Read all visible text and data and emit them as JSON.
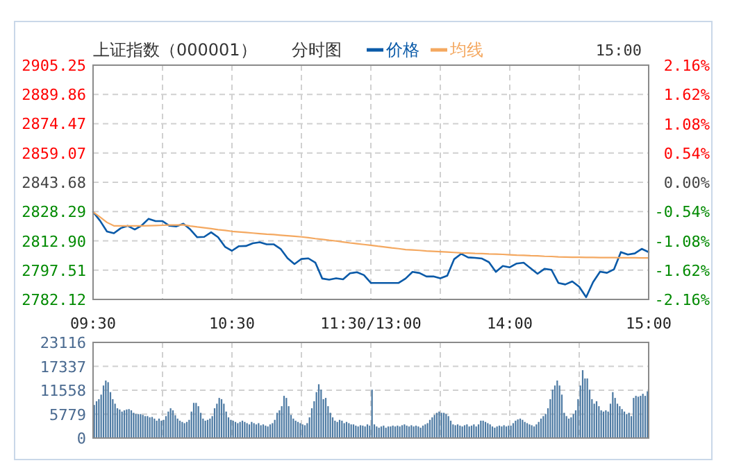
{
  "chart_data": [
    {
      "type": "line",
      "title": "上证指数（000001）",
      "subtitle": "分时图",
      "annotations": [
        "15:00"
      ],
      "legend": "top",
      "grid": true,
      "categories": [
        "09:30",
        null,
        null,
        null,
        null,
        null,
        null,
        null,
        null,
        null,
        null,
        null,
        null,
        null,
        null,
        null,
        null,
        null,
        null,
        null,
        "10:30",
        null,
        null,
        null,
        null,
        null,
        null,
        null,
        null,
        null,
        null,
        null,
        null,
        null,
        null,
        null,
        null,
        null,
        null,
        null,
        "11:30/13:00",
        null,
        null,
        null,
        null,
        null,
        null,
        null,
        null,
        null,
        null,
        null,
        null,
        null,
        null,
        null,
        null,
        null,
        null,
        null,
        "14:00",
        null,
        null,
        null,
        null,
        null,
        null,
        null,
        null,
        null,
        null,
        null,
        null,
        null,
        null,
        null,
        null,
        null,
        null,
        null,
        "15:00"
      ],
      "ylim": [
        2782.12,
        2905.25
      ],
      "yticks": [
        {
          "value": 2782.12,
          "label": "2782.12"
        },
        {
          "value": 2797.51,
          "label": "2797.51"
        },
        {
          "value": 2812.9,
          "label": "2812.90"
        },
        {
          "value": 2828.29,
          "label": "2828.29"
        },
        {
          "value": 2843.68,
          "label": "2843.68"
        },
        {
          "value": 2859.07,
          "label": "2859.07"
        },
        {
          "value": 2874.47,
          "label": "2874.47"
        },
        {
          "value": 2889.86,
          "label": "2889.86"
        },
        {
          "value": 2905.25,
          "label": "2905.25"
        }
      ],
      "y2lim": [
        -2.16,
        2.16
      ],
      "y2ticks": [
        {
          "value": -2.16,
          "label": "-2.16%"
        },
        {
          "value": -1.62,
          "label": "-1.62%"
        },
        {
          "value": -1.08,
          "label": "-1.08%"
        },
        {
          "value": -0.54,
          "label": "-0.54%"
        },
        {
          "value": 0,
          "label": "0.00%"
        },
        {
          "value": 0.54,
          "label": "0.54%"
        },
        {
          "value": 1.08,
          "label": "1.08%"
        },
        {
          "value": 1.62,
          "label": "1.62%"
        },
        {
          "value": 2.16,
          "label": "2.16%"
        }
      ],
      "series": [
        {
          "name": "价格",
          "color": "#0a5aa8",
          "values": [
            2828.1,
            2823.5,
            2817.8,
            2816.9,
            2819.6,
            2820.8,
            2818.9,
            2821.0,
            2824.5,
            2823.3,
            2823.3,
            2820.8,
            2820.5,
            2821.9,
            2818.9,
            2814.8,
            2815.0,
            2817.4,
            2814.8,
            2809.8,
            2807.7,
            2810.1,
            2810.2,
            2811.6,
            2812.2,
            2811.1,
            2811.1,
            2808.7,
            2803.8,
            2800.7,
            2803.4,
            2803.7,
            2801.5,
            2793.1,
            2792.5,
            2793.2,
            2792.7,
            2795.9,
            2796.4,
            2794.9,
            2790.8,
            2790.8,
            2790.8,
            2790.8,
            2790.8,
            2793.1,
            2796.6,
            2796.0,
            2794.2,
            2794.2,
            2793.2,
            2794.6,
            2803.3,
            2806.1,
            2804.2,
            2804.0,
            2803.6,
            2801.7,
            2796.6,
            2799.7,
            2799.0,
            2801.0,
            2801.4,
            2798.5,
            2795.6,
            2798.2,
            2797.7,
            2790.8,
            2790.0,
            2791.6,
            2788.8,
            2783.3,
            2791.2,
            2796.7,
            2796.1,
            2797.9,
            2807.0,
            2805.7,
            2806.3,
            2808.7,
            2807.0
          ]
        },
        {
          "name": "均线",
          "color": "#f4a860",
          "values": [
            2828.1,
            2825.4,
            2822.6,
            2820.8,
            2820.8,
            2820.8,
            2820.8,
            2820.8,
            2820.9,
            2821.0,
            2821.1,
            2821.2,
            2821.2,
            2821.3,
            2820.7,
            2820.2,
            2819.8,
            2819.3,
            2818.8,
            2818.4,
            2817.9,
            2817.6,
            2817.3,
            2817.0,
            2816.7,
            2816.4,
            2816.2,
            2815.9,
            2815.6,
            2815.3,
            2815.0,
            2814.6,
            2814.1,
            2813.7,
            2813.2,
            2812.8,
            2812.3,
            2811.8,
            2811.4,
            2811.0,
            2810.6,
            2810.1,
            2809.7,
            2809.2,
            2808.8,
            2808.3,
            2808.1,
            2807.9,
            2807.6,
            2807.4,
            2807.2,
            2807.0,
            2806.8,
            2806.6,
            2806.5,
            2806.3,
            2806.2,
            2806.0,
            2805.9,
            2805.8,
            2805.6,
            2805.4,
            2805.3,
            2805.1,
            2805.0,
            2804.8,
            2804.7,
            2804.5,
            2804.4,
            2804.3,
            2804.3,
            2804.2,
            2804.2,
            2804.1,
            2804.1,
            2804.1,
            2804.0,
            2804.0,
            2804.0,
            2803.9,
            2803.9
          ]
        }
      ]
    },
    {
      "type": "bar",
      "grid": true,
      "tick_labels": "y",
      "color": "#4d7aa3",
      "ylim": [
        0,
        23116
      ],
      "yticks": [
        0,
        5779,
        11558,
        17337,
        23116
      ],
      "categories": [
        null,
        null,
        null,
        null,
        null,
        null,
        null,
        null,
        null,
        null,
        null,
        null,
        null,
        null,
        null,
        null,
        null,
        null,
        null,
        null,
        null,
        null,
        null,
        null,
        null,
        null,
        null,
        null,
        null,
        null,
        null,
        null,
        null,
        null,
        null,
        null,
        null,
        null,
        null,
        null,
        null,
        null,
        null,
        null,
        null,
        null,
        null,
        null,
        null,
        null,
        null,
        null,
        null,
        null,
        null,
        null,
        null,
        null,
        null,
        null,
        null,
        null,
        null,
        null,
        null,
        null,
        null,
        null,
        null,
        null,
        null,
        null,
        null,
        null,
        null,
        null,
        null,
        null,
        null,
        null,
        null,
        null,
        null,
        null,
        null,
        null,
        null,
        null,
        null,
        null,
        null,
        null,
        null,
        null,
        null,
        null,
        null,
        null,
        null,
        null,
        null,
        null,
        null,
        null,
        null,
        null,
        null,
        null,
        null,
        null,
        null,
        null,
        null,
        null,
        null,
        null,
        null,
        null,
        null,
        null,
        null,
        null,
        null,
        null,
        null,
        null,
        null,
        null,
        null,
        null,
        null,
        null,
        null,
        null,
        null,
        null,
        null,
        null,
        null,
        null,
        null,
        null,
        null,
        null,
        null,
        null,
        null,
        null,
        null,
        null,
        null,
        null,
        null,
        null,
        null,
        null,
        null,
        null,
        null,
        null,
        null,
        null,
        null,
        null,
        null,
        null,
        null,
        null,
        null,
        null,
        null,
        null,
        null,
        null,
        null,
        null,
        null,
        null,
        null,
        null,
        null,
        null,
        null,
        null,
        null,
        null,
        null,
        null,
        null,
        null,
        null,
        null,
        null,
        null,
        null,
        null,
        null,
        null,
        null,
        null,
        null,
        null,
        null,
        null,
        null,
        null,
        null,
        null,
        null,
        null,
        null,
        null,
        null,
        null,
        null,
        null,
        null,
        null,
        null,
        null,
        null,
        null,
        null,
        null,
        null,
        null,
        null,
        null,
        null,
        null,
        null,
        null,
        null,
        null,
        null,
        null,
        null,
        null,
        null,
        null
      ],
      "values": [
        8000,
        8900,
        9400,
        10500,
        12700,
        13900,
        13500,
        11100,
        9400,
        8300,
        7200,
        6900,
        6400,
        6700,
        6900,
        7000,
        6700,
        6100,
        5800,
        5800,
        5800,
        5600,
        5300,
        5300,
        5000,
        5100,
        4700,
        4200,
        4700,
        4200,
        4400,
        5300,
        6400,
        7200,
        6700,
        5500,
        4700,
        4200,
        3900,
        3600,
        3900,
        4400,
        6400,
        8500,
        8500,
        7700,
        6100,
        4700,
        4200,
        4400,
        4700,
        5300,
        7200,
        8300,
        9700,
        9400,
        8300,
        6400,
        5000,
        4400,
        4200,
        3900,
        3600,
        3900,
        4200,
        3900,
        3600,
        3300,
        3900,
        3600,
        3300,
        3600,
        3100,
        3300,
        3000,
        2800,
        3300,
        3600,
        4400,
        6100,
        6700,
        7700,
        10200,
        9700,
        7700,
        5600,
        4700,
        4200,
        3900,
        3600,
        3300,
        3100,
        3600,
        5000,
        7200,
        8900,
        11100,
        13000,
        11700,
        9400,
        9700,
        7700,
        6100,
        5000,
        4200,
        3900,
        4400,
        4200,
        3600,
        3900,
        3600,
        3300,
        3300,
        3000,
        2800,
        3100,
        3000,
        2800,
        3300,
        3000,
        11700,
        3300,
        2800,
        2500,
        2800,
        3000,
        2500,
        2800,
        2800,
        3000,
        2800,
        3000,
        2800,
        3100,
        3300,
        3000,
        2800,
        3100,
        2800,
        3000,
        2800,
        2500,
        3000,
        3300,
        3600,
        4400,
        5000,
        5600,
        6100,
        6400,
        6100,
        6100,
        5800,
        5300,
        4200,
        3300,
        3100,
        3300,
        3000,
        2800,
        3100,
        3300,
        2800,
        3000,
        3300,
        2800,
        3300,
        4200,
        4200,
        3900,
        3600,
        3300,
        2800,
        2500,
        2800,
        3000,
        2800,
        3100,
        2800,
        3000,
        3000,
        3600,
        4200,
        4500,
        4700,
        4400,
        3900,
        3600,
        3300,
        3100,
        2800,
        3300,
        3900,
        4700,
        5300,
        5800,
        7200,
        9400,
        11700,
        12700,
        13900,
        12700,
        10500,
        6100,
        5300,
        4700,
        5000,
        5800,
        6700,
        9400,
        12700,
        16400,
        14400,
        14400,
        11700,
        9400,
        8300,
        8900,
        7700,
        6700,
        6400,
        6700,
        6400,
        8300,
        11100,
        9700,
        8300,
        7700,
        7000,
        6400,
        5800,
        6100,
        5300,
        9700,
        10200,
        10000,
        10200,
        10700,
        10200,
        11300
      ]
    }
  ]
}
